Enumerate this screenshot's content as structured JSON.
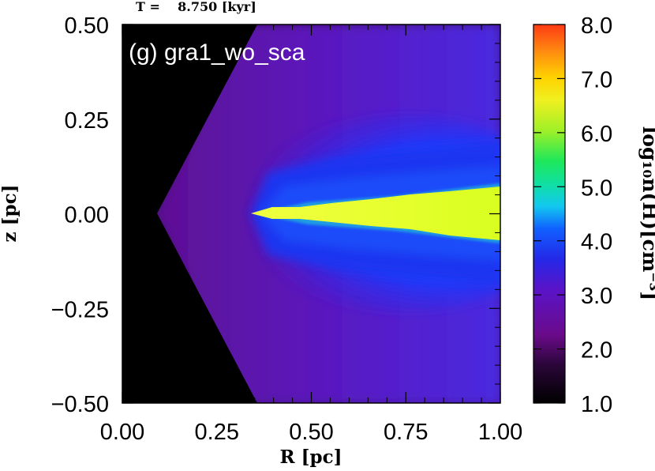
{
  "chart_data": {
    "type": "heatmap",
    "time_label": "T =    8.750 [kyr]",
    "panel_label": "(g) gra1_wo_sca",
    "xlabel": "R [pc]",
    "ylabel": "z [pc]",
    "xlim": [
      0.0,
      1.0
    ],
    "ylim": [
      -0.5,
      0.5
    ],
    "x_ticks": [
      "0.00",
      "0.25",
      "0.50",
      "0.75",
      "1.00"
    ],
    "y_ticks": [
      "0.50",
      "0.25",
      "0.00",
      "−0.25",
      "−0.50"
    ],
    "x_tick_values": [
      0.0,
      0.25,
      0.5,
      0.75,
      1.0
    ],
    "y_tick_values": [
      0.5,
      0.25,
      0.0,
      -0.25,
      -0.5
    ],
    "colorbar": {
      "label": "log₁₀n(H)[cm⁻³]",
      "range": [
        1.0,
        8.0
      ],
      "ticks": [
        "8.0",
        "7.0",
        "6.0",
        "5.0",
        "4.0",
        "3.0",
        "2.0",
        "1.0"
      ],
      "tick_values": [
        8,
        7,
        6,
        5,
        4,
        3,
        2,
        1
      ],
      "colormap": [
        "#000000",
        "#6a0a8a",
        "#5a14c8",
        "#1a3cff",
        "#12c8f0",
        "#1ee85a",
        "#c8ff28",
        "#ffd200",
        "#ff3a14"
      ]
    },
    "features": {
      "cone_apex_R": 0.09,
      "disk_inner_edge_R": 0.34,
      "disk_half_thickness_at_R1": 0.07,
      "ambient_log_density": 2.2,
      "cavity_log_density": 1.0,
      "disk_log_density": 6.5
    }
  }
}
